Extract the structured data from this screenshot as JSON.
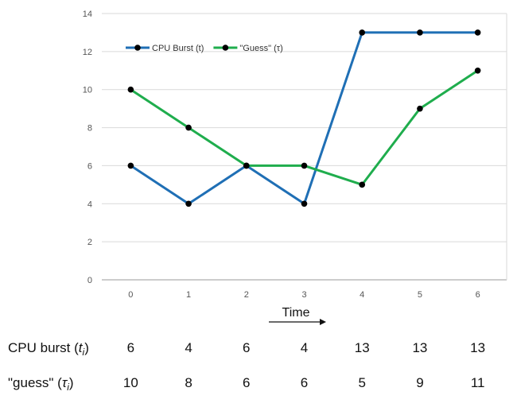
{
  "chart_data": {
    "type": "line",
    "x": [
      0,
      1,
      2,
      3,
      4,
      5,
      6
    ],
    "ylim": [
      0,
      14
    ],
    "yticks": [
      0,
      2,
      4,
      6,
      8,
      10,
      12,
      14
    ],
    "xlabel": "Time",
    "grid": true,
    "legend_position": "top-left",
    "series": [
      {
        "name": "CPU Burst (t)",
        "color": "#1f6fb5",
        "values": [
          6,
          4,
          6,
          4,
          13,
          13,
          13
        ]
      },
      {
        "name": "\"Guess\" (τ)",
        "color": "#1fad4d",
        "values": [
          10,
          8,
          6,
          6,
          5,
          9,
          11
        ]
      }
    ]
  },
  "table": {
    "rows": [
      {
        "label": "CPU burst (",
        "symbol": "t",
        "sub": "i",
        "close": ")",
        "values": [
          "6",
          "4",
          "6",
          "4",
          "13",
          "13",
          "13"
        ]
      },
      {
        "label": "\"guess\" (",
        "symbol": "τ",
        "sub": "i",
        "close": ")",
        "values": [
          "10",
          "8",
          "6",
          "6",
          "5",
          "9",
          "11"
        ]
      }
    ]
  }
}
